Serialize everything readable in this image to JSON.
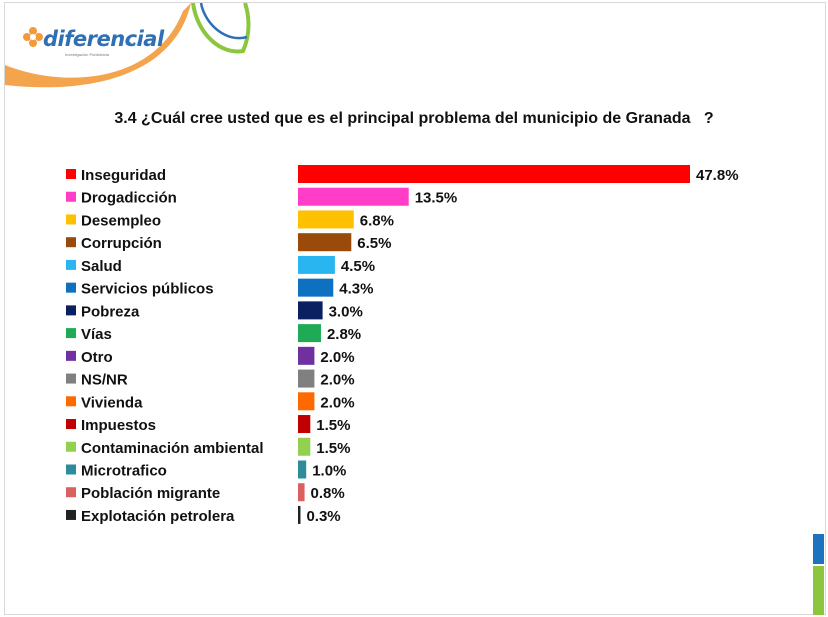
{
  "brand": {
    "name": "diferencial",
    "suffix": "s.a.s",
    "tagline": "Investigación Publicitaria",
    "colors": {
      "blue": "#2f6fb3",
      "orange": "#f39a3a",
      "green": "#8cc63f"
    }
  },
  "chart_data": {
    "type": "bar",
    "orientation": "horizontal",
    "title": "3.4 ¿Cuál cree usted que es el principal problema del municipio de Granada   ?",
    "xlabel": "",
    "ylabel": "",
    "xlim": [
      0,
      50
    ],
    "grid": false,
    "legend": "left",
    "value_suffix": "%",
    "categories": [
      "Inseguridad",
      "Drogadicción",
      "Desempleo",
      "Corrupción",
      "Salud",
      "Servicios públicos",
      "Pobreza",
      "Vías",
      "Otro",
      "NS/NR",
      "Vivienda",
      "Impuestos",
      "Contaminación ambiental",
      "Microtrafico",
      "Población migrante",
      "Explotación petrolera"
    ],
    "values": [
      47.8,
      13.5,
      6.8,
      6.5,
      4.5,
      4.3,
      3.0,
      2.8,
      2.0,
      2.0,
      2.0,
      1.5,
      1.5,
      1.0,
      0.8,
      0.3
    ],
    "value_labels": [
      "47.8%",
      "13.5%",
      "6.8%",
      "6.5%",
      "4.5%",
      "4.3%",
      "3.0%",
      "2.8%",
      "2.0%",
      "2.0%",
      "2.0%",
      "1.5%",
      "1.5%",
      "1.0%",
      "0.8%",
      "0.3%"
    ],
    "colors": [
      "#ff0000",
      "#ff3dc8",
      "#ffc000",
      "#9a4b0b",
      "#29b6f0",
      "#0e70c0",
      "#0a2060",
      "#1faa55",
      "#7030a0",
      "#808080",
      "#ff6a00",
      "#c00000",
      "#92d050",
      "#2e8b9a",
      "#d9605f",
      "#222222"
    ]
  }
}
